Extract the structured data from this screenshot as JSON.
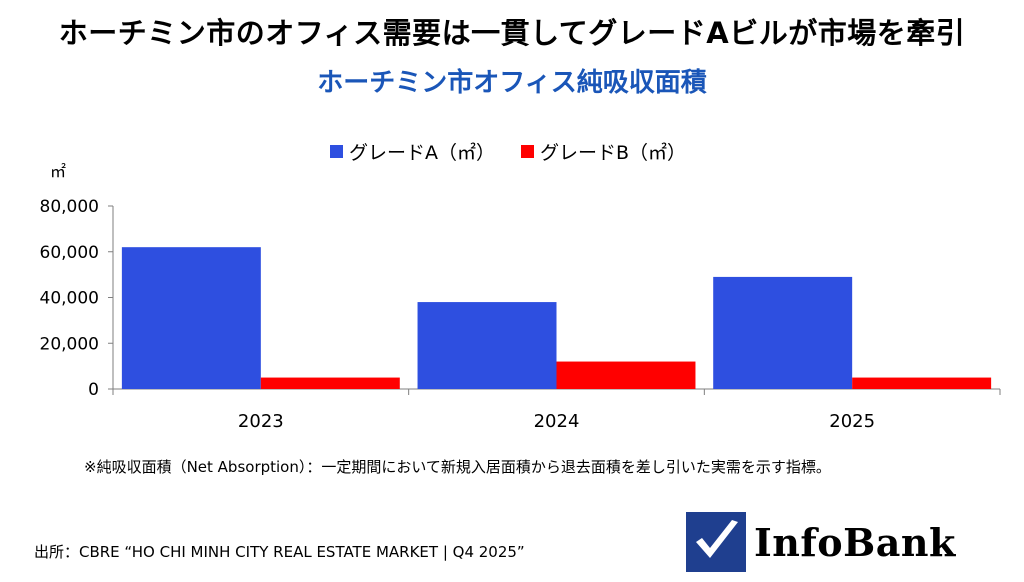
{
  "headline": "ホーチミン市のオフィス需要は一貫してグレードAビルが市場を牽引",
  "subtitle": "ホーチミン市オフィス純吸収面積",
  "unit_label": "㎡",
  "colors": {
    "grade_a": "#2e4fe0",
    "grade_b": "#ff0000",
    "subtitle": "#1a56b8"
  },
  "chart_data": {
    "type": "bar",
    "title": "ホーチミン市オフィス純吸収面積",
    "ylabel": "㎡",
    "categories": [
      "2023",
      "2024",
      "2025"
    ],
    "series": [
      {
        "name": "グレードA（㎡）",
        "values": [
          62000,
          38000,
          49000
        ]
      },
      {
        "name": "グレードB（㎡）",
        "values": [
          5000,
          12000,
          5000
        ]
      }
    ],
    "ylim": [
      0,
      80000
    ],
    "yticks": [
      0,
      20000,
      40000,
      60000,
      80000
    ],
    "ytick_labels": [
      "0",
      "20,000",
      "40,000",
      "60,000",
      "80,000"
    ],
    "legend_position": "top-center",
    "grid": false
  },
  "note": "※純吸収面積（Net Absorption）：一定期間において新規入居面積から退去面積を差し引いた実需を示す指標。",
  "source": "出所：CBRE “HO CHI MINH CITY REAL ESTATE MARKET | Q4 2025”",
  "logo": {
    "text": "InfoBank",
    "icon": "checkmark-icon"
  }
}
